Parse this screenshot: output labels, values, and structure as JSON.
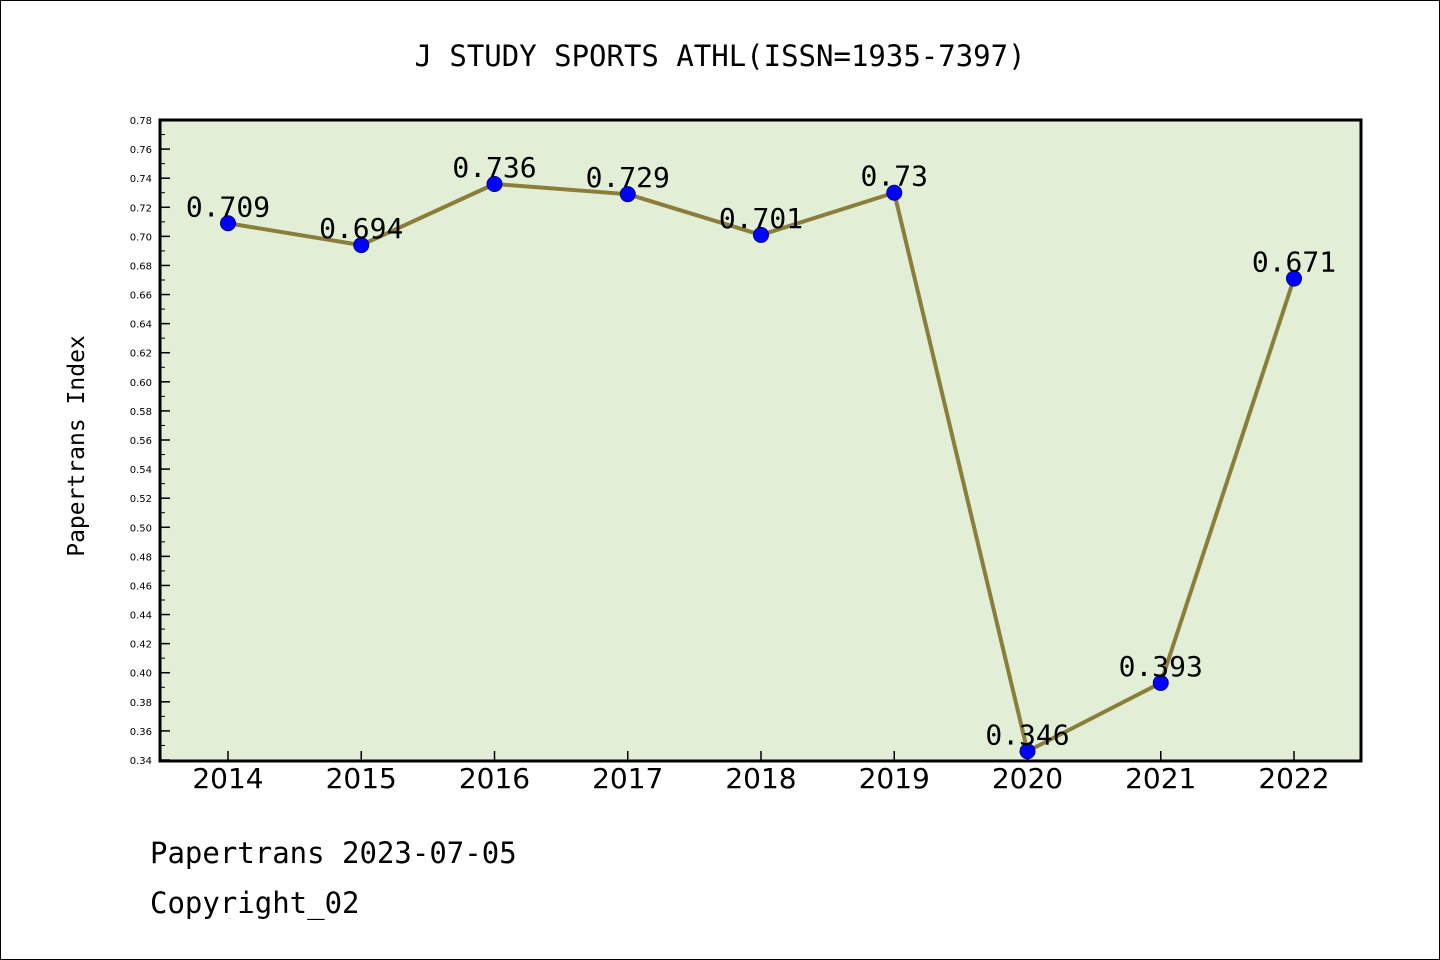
{
  "chart_data": {
    "type": "line",
    "title": "J STUDY SPORTS ATHL(ISSN=1935-7397)",
    "xlabel": "",
    "ylabel": "Papertrans Index",
    "categories": [
      "2014",
      "2015",
      "2016",
      "2017",
      "2018",
      "2019",
      "2020",
      "2021",
      "2022"
    ],
    "values": [
      0.709,
      0.694,
      0.736,
      0.729,
      0.701,
      0.73,
      0.346,
      0.393,
      0.671
    ],
    "data_labels": [
      "0.709",
      "0.694",
      "0.736",
      "0.729",
      "0.701",
      "0.73",
      "0.346",
      "0.393",
      "0.671"
    ],
    "ylim": [
      0.34,
      0.78
    ],
    "ytick_step": 0.02,
    "grid": false,
    "legend": "none",
    "colors": {
      "plot_background": "#e2efd6",
      "line": "#8b7d3a",
      "marker": "#0000ff",
      "axis": "#000000"
    }
  },
  "footer": {
    "date_line": "Papertrans 2023-07-05",
    "copyright_line": "Copyright_02"
  }
}
